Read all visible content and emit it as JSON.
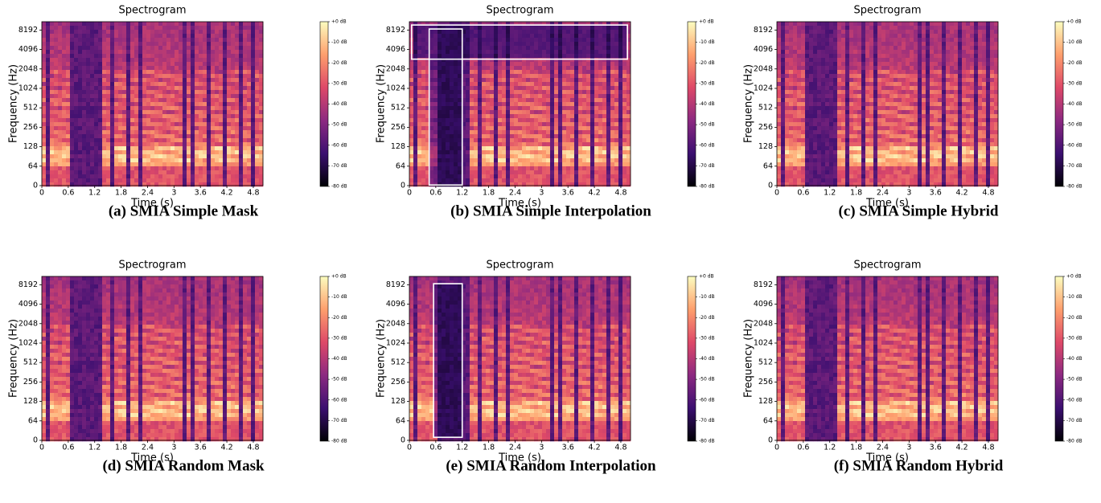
{
  "chart_data": [
    {
      "type": "spectrogram",
      "title": "Spectrogram",
      "xlabel": "Time (s)",
      "ylabel": "Frequency (Hz)",
      "caption": "(a) SMIA Simple Mask",
      "xlim": [
        0,
        5.02
      ],
      "xticks": [
        0,
        0.6,
        1.2,
        1.8,
        2.4,
        3,
        3.6,
        4.2,
        4.8
      ],
      "ylim": [
        0,
        11025
      ],
      "yscale": "symlog",
      "linthresh": 64,
      "yticks": [
        0,
        64,
        128,
        256,
        512,
        1024,
        2048,
        4096,
        8192
      ],
      "clim": [
        -80,
        0
      ],
      "colormap": "magma",
      "cticks": [
        {
          "value": 0,
          "label": "+0 dB"
        },
        {
          "value": -10,
          "label": "-10 dB"
        },
        {
          "value": -20,
          "label": "-20 dB"
        },
        {
          "value": -30,
          "label": "-30 dB"
        },
        {
          "value": -40,
          "label": "-40 dB"
        },
        {
          "value": -50,
          "label": "-50 dB"
        },
        {
          "value": -60,
          "label": "-60 dB"
        },
        {
          "value": -70,
          "label": "-70 dB"
        },
        {
          "value": -80,
          "label": "-80 dB"
        }
      ],
      "boxes": []
    },
    {
      "type": "spectrogram",
      "title": "Spectrogram",
      "xlabel": "Time (s)",
      "ylabel": "Frequency (Hz)",
      "caption": "(b) SMIA Simple Interpolation",
      "xlim": [
        0,
        5.02
      ],
      "xticks": [
        0,
        0.6,
        1.2,
        1.8,
        2.4,
        3,
        3.6,
        4.2,
        4.8
      ],
      "ylim": [
        0,
        11025
      ],
      "yscale": "symlog",
      "linthresh": 64,
      "yticks": [
        0,
        64,
        128,
        256,
        512,
        1024,
        2048,
        4096,
        8192
      ],
      "clim": [
        -80,
        0
      ],
      "colormap": "magma",
      "cticks": [
        {
          "value": 0,
          "label": "+0 dB"
        },
        {
          "value": -10,
          "label": "-10 dB"
        },
        {
          "value": -20,
          "label": "-20 dB"
        },
        {
          "value": -30,
          "label": "-30 dB"
        },
        {
          "value": -40,
          "label": "-40 dB"
        },
        {
          "value": -50,
          "label": "-50 dB"
        },
        {
          "value": -60,
          "label": "-60 dB"
        },
        {
          "value": -70,
          "label": "-70 dB"
        },
        {
          "value": -80,
          "label": "-80 dB"
        }
      ],
      "boxes": [
        {
          "x": [
            0.45,
            1.2
          ],
          "y": [
            2,
            8500
          ]
        },
        {
          "x": [
            0.05,
            4.95
          ],
          "y": [
            2900,
            9800
          ]
        }
      ]
    },
    {
      "type": "spectrogram",
      "title": "Spectrogram",
      "xlabel": "Time (s)",
      "ylabel": "Frequency (Hz)",
      "caption": "(c) SMIA Simple Hybrid",
      "xlim": [
        0,
        5.02
      ],
      "xticks": [
        0,
        0.6,
        1.2,
        1.8,
        2.4,
        3,
        3.6,
        4.2,
        4.8
      ],
      "ylim": [
        0,
        11025
      ],
      "yscale": "symlog",
      "linthresh": 64,
      "yticks": [
        0,
        64,
        128,
        256,
        512,
        1024,
        2048,
        4096,
        8192
      ],
      "clim": [
        -80,
        0
      ],
      "colormap": "magma",
      "cticks": [
        {
          "value": 0,
          "label": "+0 dB"
        },
        {
          "value": -10,
          "label": "-10 dB"
        },
        {
          "value": -20,
          "label": "-20 dB"
        },
        {
          "value": -30,
          "label": "-30 dB"
        },
        {
          "value": -40,
          "label": "-40 dB"
        },
        {
          "value": -50,
          "label": "-50 dB"
        },
        {
          "value": -60,
          "label": "-60 dB"
        },
        {
          "value": -70,
          "label": "-70 dB"
        },
        {
          "value": -80,
          "label": "-80 dB"
        }
      ],
      "boxes": []
    },
    {
      "type": "spectrogram",
      "title": "Spectrogram",
      "xlabel": "Time (s)",
      "ylabel": "Frequency (Hz)",
      "caption": "(d) SMIA Random Mask",
      "xlim": [
        0,
        5.02
      ],
      "xticks": [
        0,
        0.6,
        1.2,
        1.8,
        2.4,
        3,
        3.6,
        4.2,
        4.8
      ],
      "ylim": [
        0,
        11025
      ],
      "yscale": "symlog",
      "linthresh": 64,
      "yticks": [
        0,
        64,
        128,
        256,
        512,
        1024,
        2048,
        4096,
        8192
      ],
      "clim": [
        -80,
        0
      ],
      "colormap": "magma",
      "cticks": [
        {
          "value": 0,
          "label": "+0 dB"
        },
        {
          "value": -10,
          "label": "-10 dB"
        },
        {
          "value": -20,
          "label": "-20 dB"
        },
        {
          "value": -30,
          "label": "-30 dB"
        },
        {
          "value": -40,
          "label": "-40 dB"
        },
        {
          "value": -50,
          "label": "-50 dB"
        },
        {
          "value": -60,
          "label": "-60 dB"
        },
        {
          "value": -70,
          "label": "-70 dB"
        },
        {
          "value": -80,
          "label": "-80 dB"
        }
      ],
      "boxes": []
    },
    {
      "type": "spectrogram",
      "title": "Spectrogram",
      "xlabel": "Time (s)",
      "ylabel": "Frequency (Hz)",
      "caption": "(e) SMIA Random Interpolation",
      "xlim": [
        0,
        5.02
      ],
      "xticks": [
        0,
        0.6,
        1.2,
        1.8,
        2.4,
        3,
        3.6,
        4.2,
        4.8
      ],
      "ylim": [
        0,
        11025
      ],
      "yscale": "symlog",
      "linthresh": 64,
      "yticks": [
        0,
        64,
        128,
        256,
        512,
        1024,
        2048,
        4096,
        8192
      ],
      "clim": [
        -80,
        0
      ],
      "colormap": "magma",
      "cticks": [
        {
          "value": 0,
          "label": "+0 dB"
        },
        {
          "value": -10,
          "label": "-10 dB"
        },
        {
          "value": -20,
          "label": "-20 dB"
        },
        {
          "value": -30,
          "label": "-30 dB"
        },
        {
          "value": -40,
          "label": "-40 dB"
        },
        {
          "value": -50,
          "label": "-50 dB"
        },
        {
          "value": -60,
          "label": "-60 dB"
        },
        {
          "value": -70,
          "label": "-70 dB"
        },
        {
          "value": -80,
          "label": "-80 dB"
        }
      ],
      "boxes": [
        {
          "x": [
            0.55,
            1.2
          ],
          "y": [
            10,
            8500
          ]
        }
      ]
    },
    {
      "type": "spectrogram",
      "title": "Spectrogram",
      "xlabel": "Time (s)",
      "ylabel": "Frequency (Hz)",
      "caption": "(f) SMIA Random Hybrid",
      "xlim": [
        0,
        5.02
      ],
      "xticks": [
        0,
        0.6,
        1.2,
        1.8,
        2.4,
        3,
        3.6,
        4.2,
        4.8
      ],
      "ylim": [
        0,
        11025
      ],
      "yscale": "symlog",
      "linthresh": 64,
      "yticks": [
        0,
        64,
        128,
        256,
        512,
        1024,
        2048,
        4096,
        8192
      ],
      "clim": [
        -80,
        0
      ],
      "colormap": "magma",
      "cticks": [
        {
          "value": 0,
          "label": "+0 dB"
        },
        {
          "value": -10,
          "label": "-10 dB"
        },
        {
          "value": -20,
          "label": "-20 dB"
        },
        {
          "value": -30,
          "label": "-30 dB"
        },
        {
          "value": -40,
          "label": "-40 dB"
        },
        {
          "value": -50,
          "label": "-50 dB"
        },
        {
          "value": -60,
          "label": "-60 dB"
        },
        {
          "value": -70,
          "label": "-70 dB"
        },
        {
          "value": -80,
          "label": "-80 dB"
        }
      ],
      "boxes": []
    }
  ]
}
